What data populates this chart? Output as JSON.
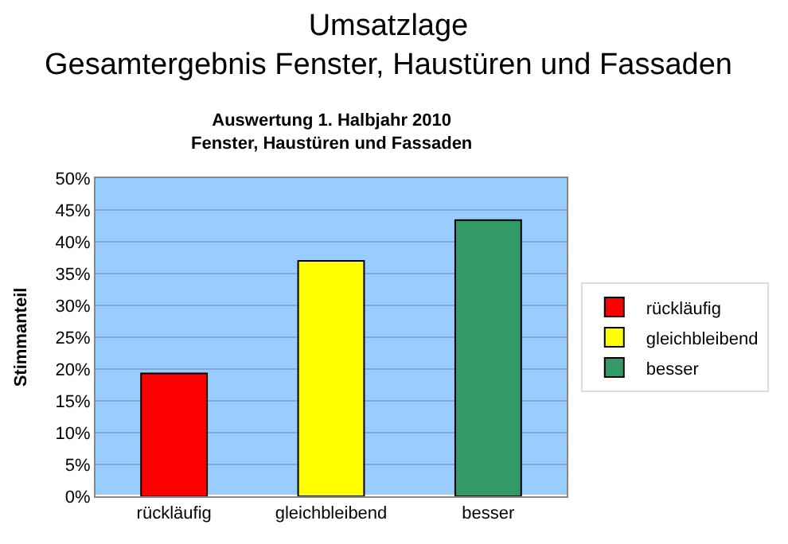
{
  "chart_data": {
    "type": "bar",
    "title": "Umsatzlage\nGesamtergebnis Fenster, Haustüren und Fassaden",
    "subtitle": "Auswertung 1. Halbjahr 2010\nFenster, Haustüren und Fassaden",
    "ylabel": "Stimmanteil",
    "categories": [
      "rückläufig",
      "gleichbleibend",
      "besser"
    ],
    "series": [
      {
        "name": "rückläufig",
        "color": "#ff0000",
        "values": [
          19.3,
          null,
          null
        ]
      },
      {
        "name": "gleichbleibend",
        "color": "#ffff00",
        "values": [
          null,
          37.0,
          null
        ]
      },
      {
        "name": "besser",
        "color": "#339966",
        "values": [
          null,
          null,
          43.4
        ]
      }
    ],
    "ylim": [
      0,
      50
    ],
    "yticks": [
      {
        "value": 0,
        "label": "0%"
      },
      {
        "value": 5,
        "label": "5%"
      },
      {
        "value": 10,
        "label": "10%"
      },
      {
        "value": 15,
        "label": "15%"
      },
      {
        "value": 20,
        "label": "20%"
      },
      {
        "value": 25,
        "label": "25%"
      },
      {
        "value": 30,
        "label": "30%"
      },
      {
        "value": 35,
        "label": "35%"
      },
      {
        "value": 40,
        "label": "40%"
      },
      {
        "value": 45,
        "label": "45%"
      },
      {
        "value": 50,
        "label": "50%"
      }
    ],
    "grid": "y",
    "legend": "right"
  }
}
